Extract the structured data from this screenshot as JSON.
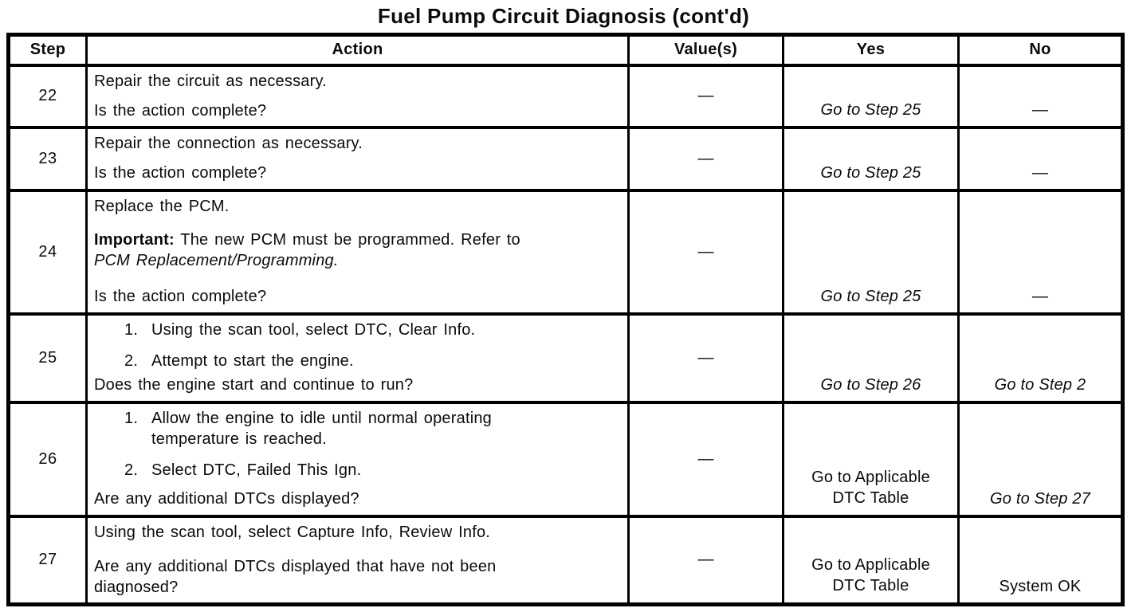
{
  "title": "Fuel Pump Circuit Diagnosis (cont'd)",
  "table": {
    "headers": {
      "step": "Step",
      "action": "Action",
      "values": "Value(s)",
      "yes": "Yes",
      "no": "No"
    },
    "rows": [
      {
        "step": "22",
        "action": {
          "line1": "Repair the circuit as necessary.",
          "question": "Is the action complete?"
        },
        "value": "—",
        "yes": "Go to Step 25",
        "no": "—"
      },
      {
        "step": "23",
        "action": {
          "line1": "Repair the connection as necessary.",
          "question": "Is the action complete?"
        },
        "value": "—",
        "yes": "Go to Step 25",
        "no": "—"
      },
      {
        "step": "24",
        "action": {
          "line1": "Replace the PCM.",
          "important_label": "Important:",
          "important_text": " The new PCM must be programmed. Refer to",
          "important_ref": "PCM Replacement/Programming.",
          "question": "Is the action complete?"
        },
        "value": "—",
        "yes": "Go to Step 25",
        "no": "—"
      },
      {
        "step": "25",
        "action": {
          "items": [
            {
              "num": "1.",
              "lines": [
                "Using the scan tool, select DTC, Clear Info."
              ]
            },
            {
              "num": "2.",
              "lines": [
                "Attempt to start the engine."
              ]
            }
          ],
          "question": "Does the engine start and continue to run?"
        },
        "value": "—",
        "yes": "Go to Step 26",
        "no": "Go to Step 2"
      },
      {
        "step": "26",
        "action": {
          "items": [
            {
              "num": "1.",
              "lines": [
                "Allow the engine to idle until normal operating",
                "temperature is reached."
              ]
            },
            {
              "num": "2.",
              "lines": [
                "Select DTC, Failed This Ign."
              ]
            }
          ],
          "question": "Are any additional DTCs displayed?"
        },
        "value": "—",
        "yes_lines": [
          "Go to Applicable",
          "DTC Table"
        ],
        "no": "Go to Step 27"
      },
      {
        "step": "27",
        "action": {
          "line1": "Using the scan tool, select Capture Info, Review Info.",
          "question_lines": [
            "Are any additional DTCs displayed that have not been",
            "diagnosed?"
          ]
        },
        "value": "—",
        "yes_lines": [
          "Go to Applicable",
          "DTC Table"
        ],
        "no": "System OK"
      }
    ]
  }
}
